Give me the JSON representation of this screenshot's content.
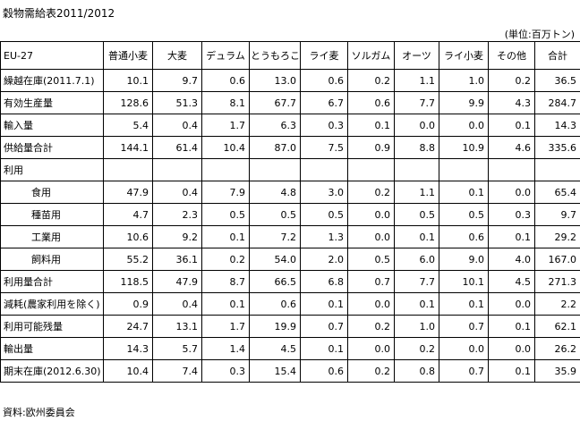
{
  "header": {
    "title": "穀物需給表2011/2012",
    "unit": "(単位:百万トン)"
  },
  "table": {
    "columns": [
      "EU-27",
      "普通小麦",
      "大麦",
      "デュラム",
      "とうもろこし",
      "ライ麦",
      "ソルガム",
      "オーツ",
      "ライ小麦",
      "その他",
      "合計"
    ],
    "rows": [
      {
        "label": "繰越在庫(2011.7.1)",
        "cells": [
          "10.1",
          "9.7",
          "0.6",
          "13.0",
          "0.6",
          "0.2",
          "1.1",
          "1.0",
          "0.2",
          "36.5"
        ]
      },
      {
        "label": "有効生産量",
        "cells": [
          "128.6",
          "51.3",
          "8.1",
          "67.7",
          "6.7",
          "0.6",
          "7.7",
          "9.9",
          "4.3",
          "284.7"
        ]
      },
      {
        "label": "輸入量",
        "cells": [
          "5.4",
          "0.4",
          "1.7",
          "6.3",
          "0.3",
          "0.1",
          "0.0",
          "0.0",
          "0.1",
          "14.3"
        ]
      },
      {
        "label": "供給量合計",
        "cells": [
          "144.1",
          "61.4",
          "10.4",
          "87.0",
          "7.5",
          "0.9",
          "8.8",
          "10.9",
          "4.6",
          "335.6"
        ]
      },
      {
        "label": "利用",
        "cells": []
      },
      {
        "label": "食用",
        "cells": [
          "47.9",
          "0.4",
          "7.9",
          "4.8",
          "3.0",
          "0.2",
          "1.1",
          "0.1",
          "0.0",
          "65.4"
        ]
      },
      {
        "label": "種苗用",
        "cells": [
          "4.7",
          "2.3",
          "0.5",
          "0.5",
          "0.5",
          "0.0",
          "0.5",
          "0.5",
          "0.3",
          "9.7"
        ]
      },
      {
        "label": "工業用",
        "cells": [
          "10.6",
          "9.2",
          "0.1",
          "7.2",
          "1.3",
          "0.0",
          "0.1",
          "0.6",
          "0.1",
          "29.2"
        ]
      },
      {
        "label": "飼料用",
        "cells": [
          "55.2",
          "36.1",
          "0.2",
          "54.0",
          "2.0",
          "0.5",
          "6.0",
          "9.0",
          "4.0",
          "167.0"
        ]
      },
      {
        "label": "利用量合計",
        "cells": [
          "118.5",
          "47.9",
          "8.7",
          "66.5",
          "6.8",
          "0.7",
          "7.7",
          "10.1",
          "4.5",
          "271.3"
        ]
      },
      {
        "label": "減耗(農家利用を除く)",
        "cells": [
          "0.9",
          "0.4",
          "0.1",
          "0.6",
          "0.1",
          "0.0",
          "0.1",
          "0.1",
          "0.0",
          "2.2"
        ]
      },
      {
        "label": "利用可能残量",
        "cells": [
          "24.7",
          "13.1",
          "1.7",
          "19.9",
          "0.7",
          "0.2",
          "1.0",
          "0.7",
          "0.1",
          "62.1"
        ]
      },
      {
        "label": "輸出量",
        "cells": [
          "14.3",
          "5.7",
          "1.4",
          "4.5",
          "0.1",
          "0.0",
          "0.2",
          "0.0",
          "0.0",
          "26.2"
        ]
      },
      {
        "label": "期末在庫(2012.6.30)",
        "cells": [
          "10.4",
          "7.4",
          "0.3",
          "15.4",
          "0.6",
          "0.2",
          "0.8",
          "0.7",
          "0.1",
          "35.9"
        ]
      }
    ]
  },
  "footer": {
    "source": "資料:欧州委員会"
  }
}
